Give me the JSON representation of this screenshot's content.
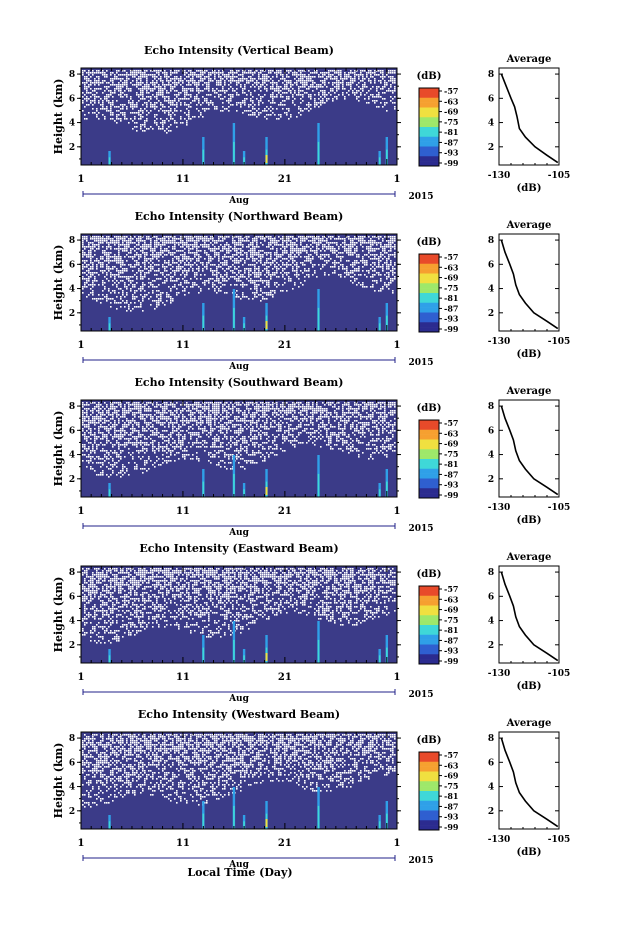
{
  "figure": {
    "xlabel": "Local Time (Day)",
    "month_label": "Aug",
    "year_label": "2015",
    "x_ticks": [
      "1",
      "11",
      "21",
      "1"
    ],
    "y_ticks": [
      "2",
      "4",
      "6",
      "8"
    ],
    "ylabel": "Height (km)",
    "colorbar_unit": "(dB)",
    "colorbar_ticks": [
      "-57",
      "-63",
      "-69",
      "-75",
      "-81",
      "-87",
      "-93",
      "-99"
    ],
    "profile_title": "Average",
    "profile_xlabel": "(dB)",
    "profile_x_ticks": [
      "-130",
      "-105"
    ]
  },
  "chart_data": [
    {
      "type": "heatmap",
      "title": "Echo Intensity (Vertical Beam)",
      "xlabel": "Local Time (Day)",
      "ylabel": "Height (km)",
      "x_ticks": [
        "1",
        "11",
        "21",
        "1"
      ],
      "y_ticks": [
        "2",
        "4",
        "6",
        "8"
      ],
      "x_range_days": [
        1,
        32
      ],
      "y_range_km": [
        0.5,
        8.5
      ],
      "colorbar": {
        "unit": "dB",
        "min": -99,
        "max": -57,
        "ticks": [
          -57,
          -63,
          -69,
          -75,
          -81,
          -87,
          -93,
          -99
        ]
      },
      "background_level_db": -99,
      "missing_data_above_km": 4.5,
      "enhanced_echo_columns_day": [
        3.8,
        13.0,
        16.0,
        17.0,
        19.2,
        24.3,
        30.3,
        31.0
      ],
      "profile": {
        "title": "Average",
        "xlabel": "(dB)",
        "xlim": [
          -130,
          -105
        ],
        "ylim": [
          0.5,
          8.5
        ],
        "points": [
          [
            -129,
            8.0
          ],
          [
            -127,
            7.0
          ],
          [
            -125,
            6.0
          ],
          [
            -123.5,
            5.3
          ],
          [
            -122.5,
            4.5
          ],
          [
            -121.5,
            3.5
          ],
          [
            -119,
            2.8
          ],
          [
            -115,
            2.0
          ],
          [
            -110,
            1.3
          ],
          [
            -105.5,
            0.7
          ]
        ]
      }
    },
    {
      "type": "heatmap",
      "title": "Echo Intensity (Northward Beam)",
      "xlabel": "Local Time (Day)",
      "ylabel": "Height (km)",
      "x_ticks": [
        "1",
        "11",
        "21",
        "1"
      ],
      "y_ticks": [
        "2",
        "4",
        "6",
        "8"
      ],
      "x_range_days": [
        1,
        32
      ],
      "y_range_km": [
        0.5,
        8.5
      ],
      "colorbar": {
        "unit": "dB",
        "min": -99,
        "max": -57,
        "ticks": [
          -57,
          -63,
          -69,
          -75,
          -81,
          -87,
          -93,
          -99
        ]
      },
      "background_level_db": -99,
      "missing_data_above_km": 3.5,
      "enhanced_echo_columns_day": [
        3.8,
        13.0,
        16.0,
        17.0,
        19.2,
        24.3,
        30.3,
        31.0
      ],
      "profile": {
        "title": "Average",
        "xlabel": "(dB)",
        "xlim": [
          -130,
          -105
        ],
        "ylim": [
          0.5,
          8.5
        ],
        "points": [
          [
            -129,
            8.0
          ],
          [
            -127.5,
            7.0
          ],
          [
            -125.5,
            6.0
          ],
          [
            -124,
            5.2
          ],
          [
            -123,
            4.3
          ],
          [
            -121.5,
            3.5
          ],
          [
            -119,
            2.8
          ],
          [
            -115.5,
            2.0
          ],
          [
            -110,
            1.3
          ],
          [
            -105.5,
            0.7
          ]
        ]
      }
    },
    {
      "type": "heatmap",
      "title": "Echo Intensity (Southward Beam)",
      "xlabel": "Local Time (Day)",
      "ylabel": "Height (km)",
      "x_ticks": [
        "1",
        "11",
        "21",
        "1"
      ],
      "y_ticks": [
        "2",
        "4",
        "6",
        "8"
      ],
      "x_range_days": [
        1,
        32
      ],
      "y_range_km": [
        0.5,
        8.5
      ],
      "colorbar": {
        "unit": "dB",
        "min": -99,
        "max": -57,
        "ticks": [
          -57,
          -63,
          -69,
          -75,
          -81,
          -87,
          -93,
          -99
        ]
      },
      "background_level_db": -99,
      "missing_data_above_km": 3.5,
      "enhanced_echo_columns_day": [
        3.8,
        13.0,
        16.0,
        17.0,
        19.2,
        24.3,
        30.3,
        31.0
      ],
      "profile": {
        "title": "Average",
        "xlabel": "(dB)",
        "xlim": [
          -130,
          -105
        ],
        "ylim": [
          0.5,
          8.5
        ],
        "points": [
          [
            -129,
            8.0
          ],
          [
            -127.5,
            7.0
          ],
          [
            -125.5,
            6.0
          ],
          [
            -124,
            5.2
          ],
          [
            -123,
            4.3
          ],
          [
            -121.5,
            3.5
          ],
          [
            -119,
            2.8
          ],
          [
            -115.5,
            2.0
          ],
          [
            -110,
            1.3
          ],
          [
            -105.5,
            0.7
          ]
        ]
      }
    },
    {
      "type": "heatmap",
      "title": "Echo Intensity (Eastward Beam)",
      "xlabel": "Local Time (Day)",
      "ylabel": "Height (km)",
      "x_ticks": [
        "1",
        "11",
        "21",
        "1"
      ],
      "y_ticks": [
        "2",
        "4",
        "6",
        "8"
      ],
      "x_range_days": [
        1,
        32
      ],
      "y_range_km": [
        0.5,
        8.5
      ],
      "colorbar": {
        "unit": "dB",
        "min": -99,
        "max": -57,
        "ticks": [
          -57,
          -63,
          -69,
          -75,
          -81,
          -87,
          -93,
          -99
        ]
      },
      "background_level_db": -99,
      "missing_data_above_km": 3.5,
      "enhanced_echo_columns_day": [
        3.8,
        13.0,
        16.0,
        17.0,
        19.2,
        24.3,
        30.3,
        31.0
      ],
      "profile": {
        "title": "Average",
        "xlabel": "(dB)",
        "xlim": [
          -130,
          -105
        ],
        "ylim": [
          0.5,
          8.5
        ],
        "points": [
          [
            -129,
            8.0
          ],
          [
            -127.5,
            7.0
          ],
          [
            -125.5,
            6.0
          ],
          [
            -124,
            5.2
          ],
          [
            -123,
            4.3
          ],
          [
            -121.5,
            3.5
          ],
          [
            -119,
            2.8
          ],
          [
            -115.5,
            2.0
          ],
          [
            -110,
            1.3
          ],
          [
            -105.5,
            0.7
          ]
        ]
      }
    },
    {
      "type": "heatmap",
      "title": "Echo Intensity (Westward Beam)",
      "xlabel": "Local Time (Day)",
      "ylabel": "Height (km)",
      "x_ticks": [
        "1",
        "11",
        "21",
        "1"
      ],
      "y_ticks": [
        "2",
        "4",
        "6",
        "8"
      ],
      "x_range_days": [
        1,
        32
      ],
      "y_range_km": [
        0.5,
        8.5
      ],
      "colorbar": {
        "unit": "dB",
        "min": -99,
        "max": -57,
        "ticks": [
          -57,
          -63,
          -69,
          -75,
          -81,
          -87,
          -93,
          -99
        ]
      },
      "background_level_db": -99,
      "missing_data_above_km": 3.5,
      "enhanced_echo_columns_day": [
        3.8,
        13.0,
        16.0,
        17.0,
        19.2,
        24.3,
        30.3,
        31.0
      ],
      "profile": {
        "title": "Average",
        "xlabel": "(dB)",
        "xlim": [
          -130,
          -105
        ],
        "ylim": [
          0.5,
          8.5
        ],
        "points": [
          [
            -129,
            8.0
          ],
          [
            -127.5,
            7.0
          ],
          [
            -125.5,
            6.0
          ],
          [
            -124,
            5.2
          ],
          [
            -123,
            4.3
          ],
          [
            -121.5,
            3.5
          ],
          [
            -119,
            2.8
          ],
          [
            -115.5,
            2.0
          ],
          [
            -110,
            1.3
          ],
          [
            -105.5,
            0.7
          ]
        ]
      }
    }
  ],
  "colors": {
    "background": "#3b3b88",
    "missing": "#ffffff",
    "colormap": [
      "#2b2b8f",
      "#2f5fd0",
      "#2fa0e8",
      "#3fd8d8",
      "#9ee86a",
      "#f0e040",
      "#f6a030",
      "#e84a2a"
    ]
  }
}
